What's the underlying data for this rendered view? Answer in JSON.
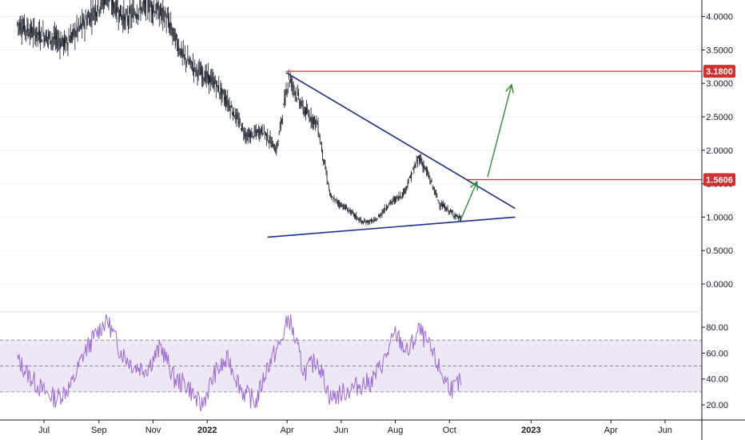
{
  "chart_data": [
    {
      "type": "candlestick",
      "title": "",
      "y_axis_labels": [
        "4.0000",
        "3.5000",
        "3.0000",
        "2.5000",
        "2.0000",
        "1.5000",
        "1.0000",
        "0.5000",
        "0.0000"
      ],
      "y_ticks": [
        4.0,
        3.5,
        3.0,
        2.5,
        2.0,
        1.5,
        1.0,
        0.5,
        0.0
      ],
      "x_axis_labels": [
        "Jul",
        "Sep",
        "Nov",
        "2022",
        "Apr",
        "Jun",
        "Aug",
        "Oct",
        "2023",
        "Apr",
        "Jun"
      ],
      "x_axis_months": [
        "2021-07",
        "2021-09",
        "2021-11",
        "2022-01",
        "2022-04",
        "2022-06",
        "2022-08",
        "2022-10",
        "2023-01",
        "2023-04",
        "2023-06"
      ],
      "bold_labels": [
        "2022",
        "2023"
      ],
      "price_path": [
        {
          "date": "2021-06-01",
          "price": 3.9
        },
        {
          "date": "2021-06-20",
          "price": 3.75
        },
        {
          "date": "2021-07-05",
          "price": 3.7
        },
        {
          "date": "2021-07-25",
          "price": 3.6
        },
        {
          "date": "2021-08-15",
          "price": 3.9
        },
        {
          "date": "2021-09-10",
          "price": 4.3
        },
        {
          "date": "2021-10-01",
          "price": 3.95
        },
        {
          "date": "2021-10-25",
          "price": 4.2
        },
        {
          "date": "2021-11-15",
          "price": 4.0
        },
        {
          "date": "2021-12-05",
          "price": 3.4
        },
        {
          "date": "2021-12-20",
          "price": 3.2
        },
        {
          "date": "2022-01-10",
          "price": 3.0
        },
        {
          "date": "2022-01-25",
          "price": 2.7
        },
        {
          "date": "2022-02-15",
          "price": 2.2
        },
        {
          "date": "2022-03-05",
          "price": 2.3
        },
        {
          "date": "2022-03-20",
          "price": 2.0
        },
        {
          "date": "2022-04-03",
          "price": 3.1
        },
        {
          "date": "2022-04-20",
          "price": 2.6
        },
        {
          "date": "2022-05-05",
          "price": 2.4
        },
        {
          "date": "2022-05-20",
          "price": 1.3
        },
        {
          "date": "2022-06-10",
          "price": 1.1
        },
        {
          "date": "2022-06-25",
          "price": 0.92
        },
        {
          "date": "2022-07-10",
          "price": 0.95
        },
        {
          "date": "2022-07-25",
          "price": 1.2
        },
        {
          "date": "2022-08-10",
          "price": 1.35
        },
        {
          "date": "2022-08-28",
          "price": 1.9
        },
        {
          "date": "2022-09-08",
          "price": 1.6
        },
        {
          "date": "2022-09-20",
          "price": 1.2
        },
        {
          "date": "2022-10-05",
          "price": 1.05
        },
        {
          "date": "2022-10-14",
          "price": 0.97
        }
      ],
      "trendlines": [
        {
          "name": "upper-trendline",
          "color": "#1c2e8f",
          "points": [
            {
              "date": "2022-03-31",
              "price": 3.16
            },
            {
              "date": "2022-12-14",
              "price": 1.13
            }
          ]
        },
        {
          "name": "lower-trendline",
          "color": "#1c2e8f",
          "points": [
            {
              "date": "2022-03-10",
              "price": 0.7
            },
            {
              "date": "2022-12-14",
              "price": 1.0
            }
          ]
        }
      ],
      "horizontal_levels": [
        {
          "value": 3.18,
          "label": "3.1800",
          "color": "#d32f2f",
          "from": "2022-03-31"
        },
        {
          "value": 1.5606,
          "label": "1.5606",
          "color": "#d32f2f",
          "from": "2022-10-20"
        }
      ],
      "arrows": [
        {
          "name": "breakout-arrow",
          "color": "#2e8b2e",
          "from": {
            "date": "2022-10-14",
            "price": 0.97
          },
          "to": {
            "date": "2022-11-01",
            "price": 1.53
          }
        },
        {
          "name": "target-arrow",
          "color": "#2e8b2e",
          "from": {
            "date": "2022-11-13",
            "price": 1.6
          },
          "to": {
            "date": "2022-12-10",
            "price": 2.98
          }
        }
      ],
      "colors": {
        "candles": "#131722",
        "grid": "#f0f3fa",
        "axis": "#131722"
      }
    },
    {
      "type": "line",
      "title": "",
      "y_axis_labels": [
        "80.00",
        "60.00",
        "40.00",
        "20.00"
      ],
      "y_ticks": [
        80,
        60,
        40,
        20
      ],
      "band": {
        "upper": 70,
        "lower": 30,
        "middle": 50,
        "fill": "#ede7f6"
      },
      "series": [
        {
          "color": "#9c6ad4",
          "points": [
            {
              "date": "2021-06-01",
              "value": 55
            },
            {
              "date": "2021-06-15",
              "value": 42
            },
            {
              "date": "2021-07-01",
              "value": 30
            },
            {
              "date": "2021-07-15",
              "value": 25
            },
            {
              "date": "2021-08-01",
              "value": 35
            },
            {
              "date": "2021-08-15",
              "value": 60
            },
            {
              "date": "2021-09-01",
              "value": 78
            },
            {
              "date": "2021-09-10",
              "value": 86
            },
            {
              "date": "2021-09-25",
              "value": 62
            },
            {
              "date": "2021-10-10",
              "value": 50
            },
            {
              "date": "2021-10-25",
              "value": 48
            },
            {
              "date": "2021-11-10",
              "value": 65
            },
            {
              "date": "2021-11-25",
              "value": 40
            },
            {
              "date": "2021-12-10",
              "value": 35
            },
            {
              "date": "2021-12-25",
              "value": 18
            },
            {
              "date": "2022-01-10",
              "value": 45
            },
            {
              "date": "2022-01-25",
              "value": 55
            },
            {
              "date": "2022-02-10",
              "value": 30
            },
            {
              "date": "2022-02-25",
              "value": 22
            },
            {
              "date": "2022-03-10",
              "value": 50
            },
            {
              "date": "2022-03-25",
              "value": 68
            },
            {
              "date": "2022-04-03",
              "value": 88
            },
            {
              "date": "2022-04-20",
              "value": 45
            },
            {
              "date": "2022-05-05",
              "value": 55
            },
            {
              "date": "2022-05-20",
              "value": 25
            },
            {
              "date": "2022-06-05",
              "value": 30
            },
            {
              "date": "2022-06-20",
              "value": 35
            },
            {
              "date": "2022-07-05",
              "value": 38
            },
            {
              "date": "2022-07-20",
              "value": 55
            },
            {
              "date": "2022-08-01",
              "value": 75
            },
            {
              "date": "2022-08-15",
              "value": 60
            },
            {
              "date": "2022-08-28",
              "value": 78
            },
            {
              "date": "2022-09-10",
              "value": 62
            },
            {
              "date": "2022-09-25",
              "value": 40
            },
            {
              "date": "2022-10-05",
              "value": 32
            },
            {
              "date": "2022-10-14",
              "value": 38
            }
          ]
        }
      ]
    }
  ]
}
